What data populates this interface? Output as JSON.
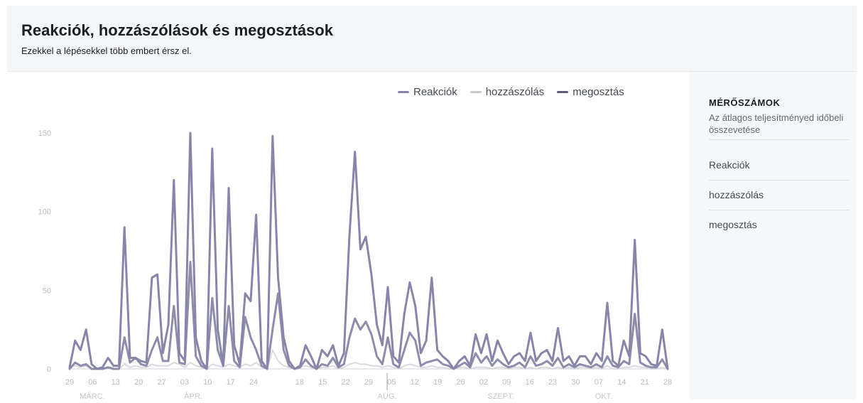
{
  "header": {
    "title": "Reakciók, hozzászólások és megosztások",
    "subtitle": "Ezekkel a lépésekkel több embert érsz el."
  },
  "sidebar": {
    "heading": "MÉRŐSZÁMOK",
    "description": "Az átlagos teljesítményed időbeli összevetése",
    "items": [
      {
        "label": "Reakciók"
      },
      {
        "label": "hozzászólás"
      },
      {
        "label": "megosztás"
      }
    ]
  },
  "colors": {
    "reakciok": "#8886a8",
    "hozzaszolas": "#d9d9df",
    "megosztas": "#8e8cab",
    "axis": "#b8bac0",
    "sidebar_bg": "#f7f8fa",
    "header_bg": "#f5f6f7"
  },
  "chart_data": {
    "type": "line",
    "title": "Reakciók, hozzászólások és megosztások",
    "subtitle": "Ezekkel a lépésekkel több embert érsz el.",
    "legend": "top-right",
    "grid": false,
    "ylim": [
      0,
      150
    ],
    "yticks": [
      0,
      50,
      100,
      150
    ],
    "x_ticks": [
      "29",
      "06",
      "13",
      "20",
      "27",
      "03",
      "10",
      "17",
      "24",
      "",
      "18",
      "15",
      "22",
      "29",
      "05",
      "12",
      "19",
      "26",
      "02",
      "09",
      "16",
      "23",
      "30",
      "07",
      "14",
      "21",
      "28"
    ],
    "month_labels": [
      "MÁRC.",
      "ÁPR.",
      "",
      "AUG.",
      "SZEPT.",
      "OKT."
    ],
    "series": [
      {
        "name": "Reakciók",
        "values": [
          1,
          18,
          12,
          25,
          3,
          0,
          1,
          7,
          2,
          2,
          90,
          7,
          7,
          5,
          4,
          58,
          60,
          10,
          28,
          120,
          10,
          5,
          150,
          20,
          5,
          0,
          140,
          25,
          2,
          115,
          15,
          3,
          48,
          43,
          98,
          5,
          0,
          148,
          58,
          20,
          5,
          0,
          2,
          15,
          8,
          0,
          12,
          8,
          15,
          2,
          10,
          85,
          138,
          76,
          84,
          60,
          28,
          15,
          52,
          8,
          4,
          35,
          55,
          40,
          10,
          18,
          58,
          12,
          8,
          5,
          0,
          5,
          8,
          2,
          22,
          10,
          22,
          5,
          18,
          10,
          3,
          8,
          10,
          5,
          23,
          5,
          10,
          12,
          5,
          26,
          5,
          8,
          2,
          8,
          8,
          3,
          10,
          5,
          42,
          5,
          2,
          18,
          8,
          82,
          10,
          8,
          3,
          2,
          25,
          0
        ]
      },
      {
        "name": "hozzászólás",
        "values": [
          1,
          2,
          1,
          2,
          0,
          0,
          0,
          1,
          0,
          0,
          3,
          1,
          2,
          1,
          1,
          3,
          2,
          2,
          2,
          4,
          3,
          1,
          4,
          2,
          1,
          0,
          3,
          2,
          1,
          3,
          2,
          1,
          3,
          2,
          4,
          1,
          0,
          12,
          5,
          2,
          1,
          0,
          1,
          2,
          1,
          0,
          1,
          1,
          2,
          0,
          1,
          3,
          4,
          3,
          3,
          2,
          2,
          1,
          2,
          1,
          0,
          2,
          3,
          2,
          1,
          1,
          2,
          1,
          1,
          0,
          0,
          1,
          1,
          0,
          1,
          1,
          1,
          0,
          1,
          1,
          0,
          1,
          1,
          0,
          1,
          0,
          1,
          1,
          0,
          1,
          0,
          1,
          0,
          1,
          1,
          0,
          1,
          0,
          2,
          0,
          0,
          1,
          1,
          2,
          1,
          1,
          0,
          0,
          1,
          0
        ]
      },
      {
        "name": "megosztás",
        "values": [
          0,
          4,
          2,
          3,
          0,
          0,
          0,
          1,
          0,
          0,
          20,
          4,
          7,
          3,
          2,
          12,
          20,
          5,
          5,
          40,
          4,
          3,
          68,
          8,
          2,
          0,
          45,
          12,
          2,
          40,
          5,
          1,
          33,
          20,
          12,
          2,
          0,
          25,
          48,
          12,
          2,
          0,
          1,
          6,
          2,
          0,
          3,
          2,
          7,
          1,
          3,
          20,
          32,
          25,
          30,
          22,
          8,
          3,
          20,
          3,
          1,
          12,
          23,
          18,
          2,
          4,
          5,
          6,
          3,
          2,
          0,
          2,
          4,
          1,
          10,
          4,
          8,
          2,
          6,
          3,
          1,
          2,
          4,
          1,
          8,
          2,
          3,
          5,
          2,
          7,
          1,
          3,
          1,
          3,
          2,
          1,
          3,
          1,
          8,
          2,
          1,
          5,
          3,
          35,
          4,
          2,
          1,
          1,
          6,
          0
        ]
      }
    ]
  }
}
